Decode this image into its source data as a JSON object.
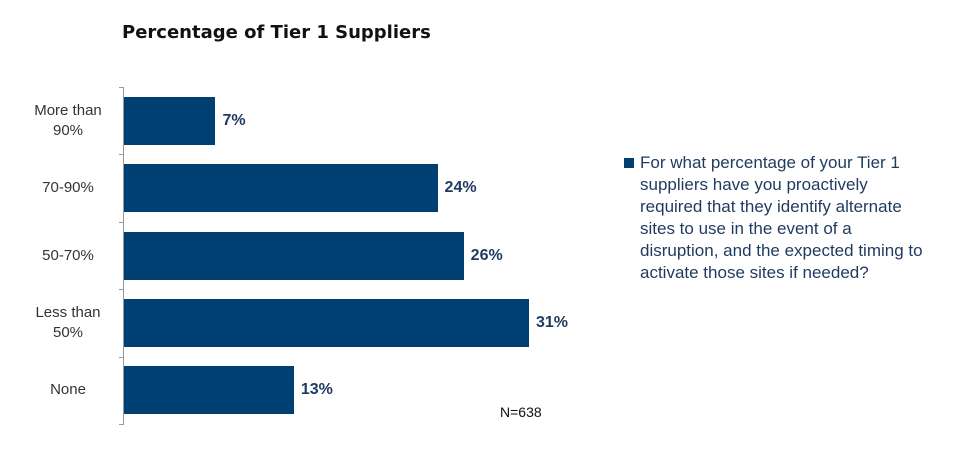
{
  "chart_data": {
    "type": "bar",
    "orientation": "horizontal",
    "title": "Percentage of Tier 1 Suppliers",
    "categories": [
      "More than 90%",
      "70-90%",
      "50-70%",
      "Less than 50%",
      "None"
    ],
    "series": [
      {
        "name": "For what percentage of your Tier 1 suppliers have you proactively required that they identify alternate sites to use in the event of a disruption, and the expected timing to activate those sites if needed?",
        "color": "#003f72",
        "values": [
          7,
          24,
          26,
          31,
          13
        ],
        "value_labels": [
          "7%",
          "24%",
          "26%",
          "31%",
          "13%"
        ]
      }
    ],
    "annotation": "N=638"
  }
}
